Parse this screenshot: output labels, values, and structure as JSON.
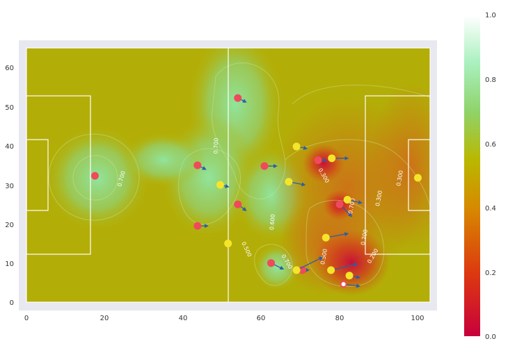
{
  "chart_data": {
    "type": "scatter",
    "title": "",
    "xlabel": "",
    "ylabel": "",
    "xlim": [
      -2,
      104
    ],
    "ylim": [
      -2,
      66
    ],
    "x_ticks": [
      "0",
      "20",
      "40",
      "60",
      "80",
      "100"
    ],
    "y_ticks": [
      "0",
      "10",
      "20",
      "30",
      "40",
      "50",
      "60"
    ],
    "pitch": {
      "length": 105,
      "width": 65
    },
    "grid": false,
    "background": "surface",
    "colorbar": {
      "range": [
        0,
        1
      ],
      "ticks": [
        "0.0",
        "0.2",
        "0.4",
        "0.6",
        "0.8",
        "1.0"
      ],
      "colormap": [
        "#c8003c",
        "#e15a00",
        "#c8a000",
        "#a0c850",
        "#7fdc9a",
        "#ffffff"
      ]
    },
    "contour_labels": [
      "0.700",
      "0.700",
      "0.700",
      "0.600",
      "0.500",
      "0.500",
      "0.700",
      "0.300",
      "0.300",
      "0.300",
      "0.200",
      "0.200",
      "0.300",
      "0.300"
    ],
    "colors": {
      "team_a": "#ef4a5c",
      "team_b": "#f5e52a",
      "arrow": "#2a5fa8",
      "ball": "#ffffff",
      "lines": "#ffffff"
    },
    "series": [
      {
        "team": "team_a",
        "points": [
          {
            "x": 17.5,
            "y": 32.3,
            "dx": 0.0,
            "dy": 0.0
          },
          {
            "x": 43.7,
            "y": 35.0,
            "dx": 2.0,
            "dy": -1.0
          },
          {
            "x": 43.7,
            "y": 19.5,
            "dx": 2.5,
            "dy": 0.0
          },
          {
            "x": 54.0,
            "y": 52.2,
            "dx": 2.0,
            "dy": -1.0
          },
          {
            "x": 54.0,
            "y": 25.0,
            "dx": 2.0,
            "dy": -1.5
          },
          {
            "x": 60.8,
            "y": 34.8,
            "dx": 3.0,
            "dy": 0.0
          },
          {
            "x": 62.5,
            "y": 10.0,
            "dx": 3.0,
            "dy": -1.5
          },
          {
            "x": 70.5,
            "y": 8.2,
            "dx": 1.5,
            "dy": 0.0
          },
          {
            "x": 74.5,
            "y": 36.3,
            "dx": 2.0,
            "dy": 0.0
          },
          {
            "x": 80.0,
            "y": 25.0,
            "dx": 3.0,
            "dy": -3.0
          }
        ]
      },
      {
        "team": "team_b",
        "points": [
          {
            "x": 49.5,
            "y": 30.0,
            "dx": 2.0,
            "dy": -0.5
          },
          {
            "x": 51.5,
            "y": 15.0,
            "dx": 0.0,
            "dy": 0.0
          },
          {
            "x": 67.0,
            "y": 30.8,
            "dx": 4.0,
            "dy": -0.8
          },
          {
            "x": 69.0,
            "y": 39.8,
            "dx": 2.5,
            "dy": -0.5
          },
          {
            "x": 69.0,
            "y": 8.2,
            "dx": 6.5,
            "dy": 3.2
          },
          {
            "x": 76.5,
            "y": 16.5,
            "dx": 5.5,
            "dy": 1.0
          },
          {
            "x": 77.8,
            "y": 8.2,
            "dx": 6.5,
            "dy": 1.5
          },
          {
            "x": 78.0,
            "y": 36.8,
            "dx": 4.0,
            "dy": 0.0
          },
          {
            "x": 82.0,
            "y": 26.2,
            "dx": 3.5,
            "dy": -0.8
          },
          {
            "x": 82.5,
            "y": 6.8,
            "dx": 2.5,
            "dy": -0.5
          },
          {
            "x": 100.0,
            "y": 31.8,
            "dx": 0.0,
            "dy": 0.0
          }
        ]
      },
      {
        "team": "ball",
        "points": [
          {
            "x": 81.0,
            "y": 4.6,
            "dx": 4.0,
            "dy": -0.5
          }
        ]
      }
    ]
  }
}
